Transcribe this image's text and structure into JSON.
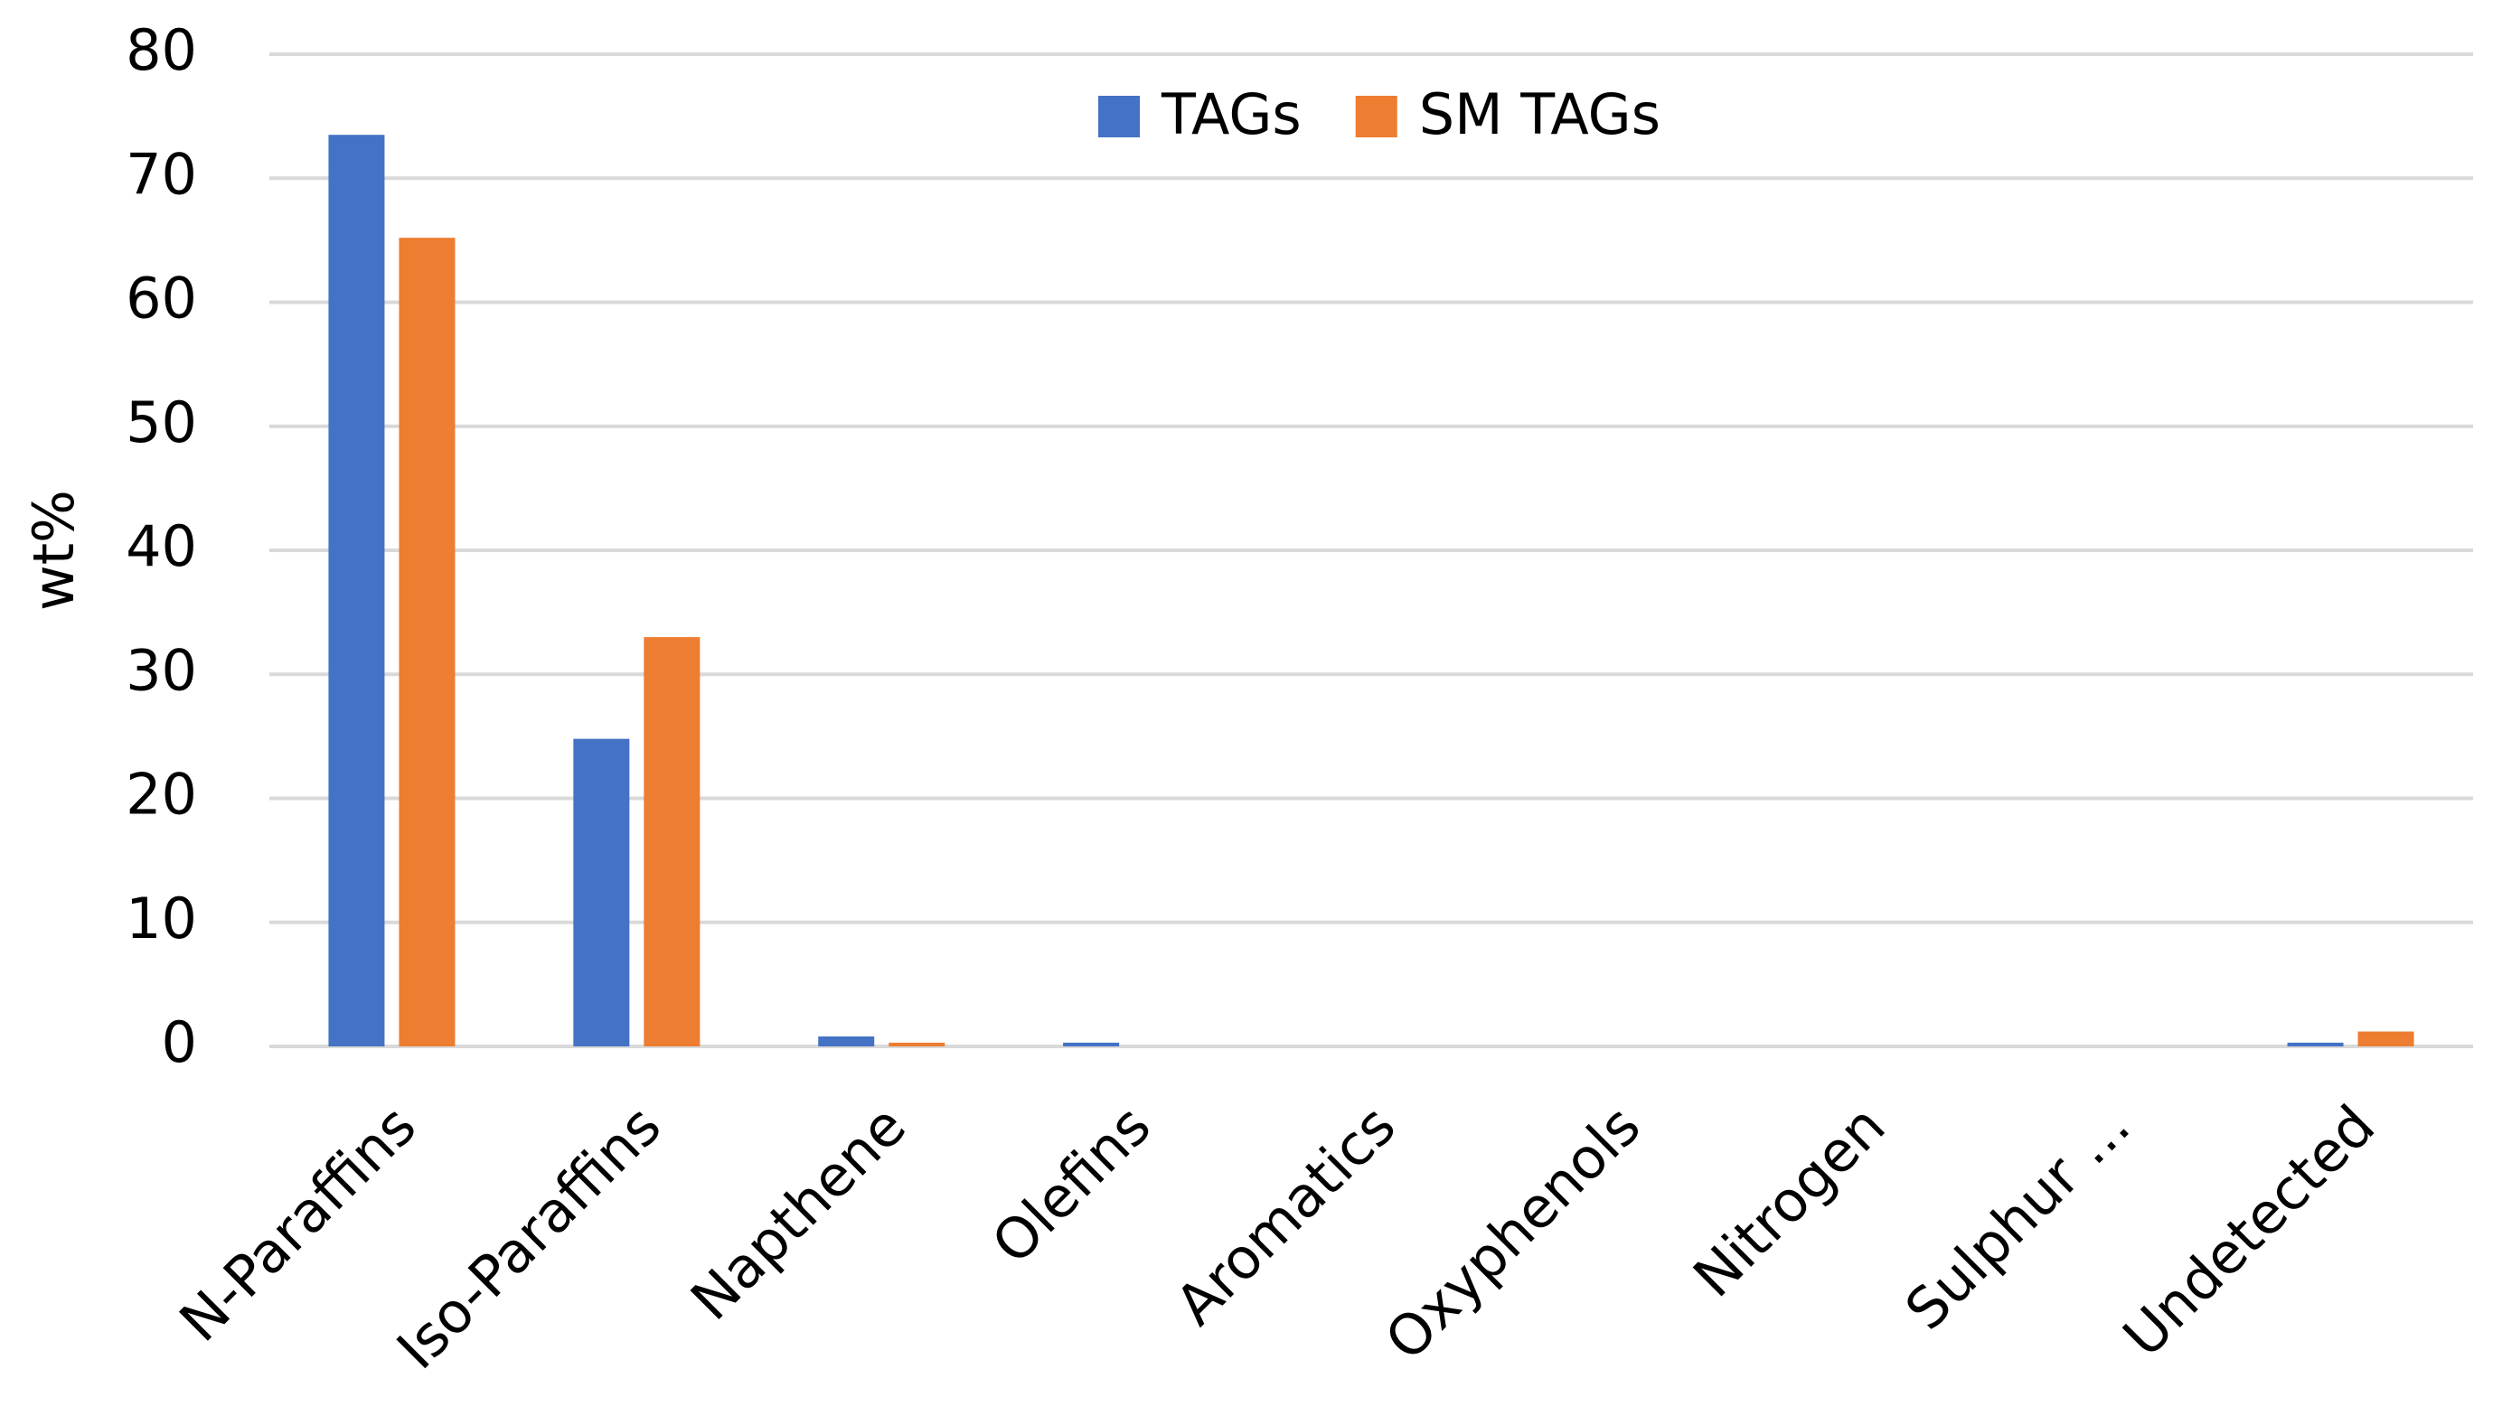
{
  "chart_data": {
    "type": "bar",
    "y_label": "wt%",
    "categories": [
      "N-Paraffins",
      "Iso-Paraffins",
      "Napthene",
      "Olefins",
      "Aromatics",
      "Oxyphenols",
      "Nitrogen",
      "Sulphur ...",
      "Undetected"
    ],
    "series": [
      {
        "name": "TAGs",
        "color": "#4472c4",
        "values": [
          73.5,
          24.8,
          0.8,
          0.3,
          0,
          0,
          0,
          0,
          0.3
        ]
      },
      {
        "name": "SM TAGs",
        "color": "#ed7d31",
        "values": [
          65.2,
          33.0,
          0.3,
          0,
          0,
          0,
          0,
          0,
          1.2
        ]
      }
    ],
    "ylim": [
      0,
      80
    ],
    "yticks": [
      0,
      10,
      20,
      30,
      40,
      50,
      60,
      70,
      80
    ],
    "grid": true,
    "legend": "top"
  }
}
